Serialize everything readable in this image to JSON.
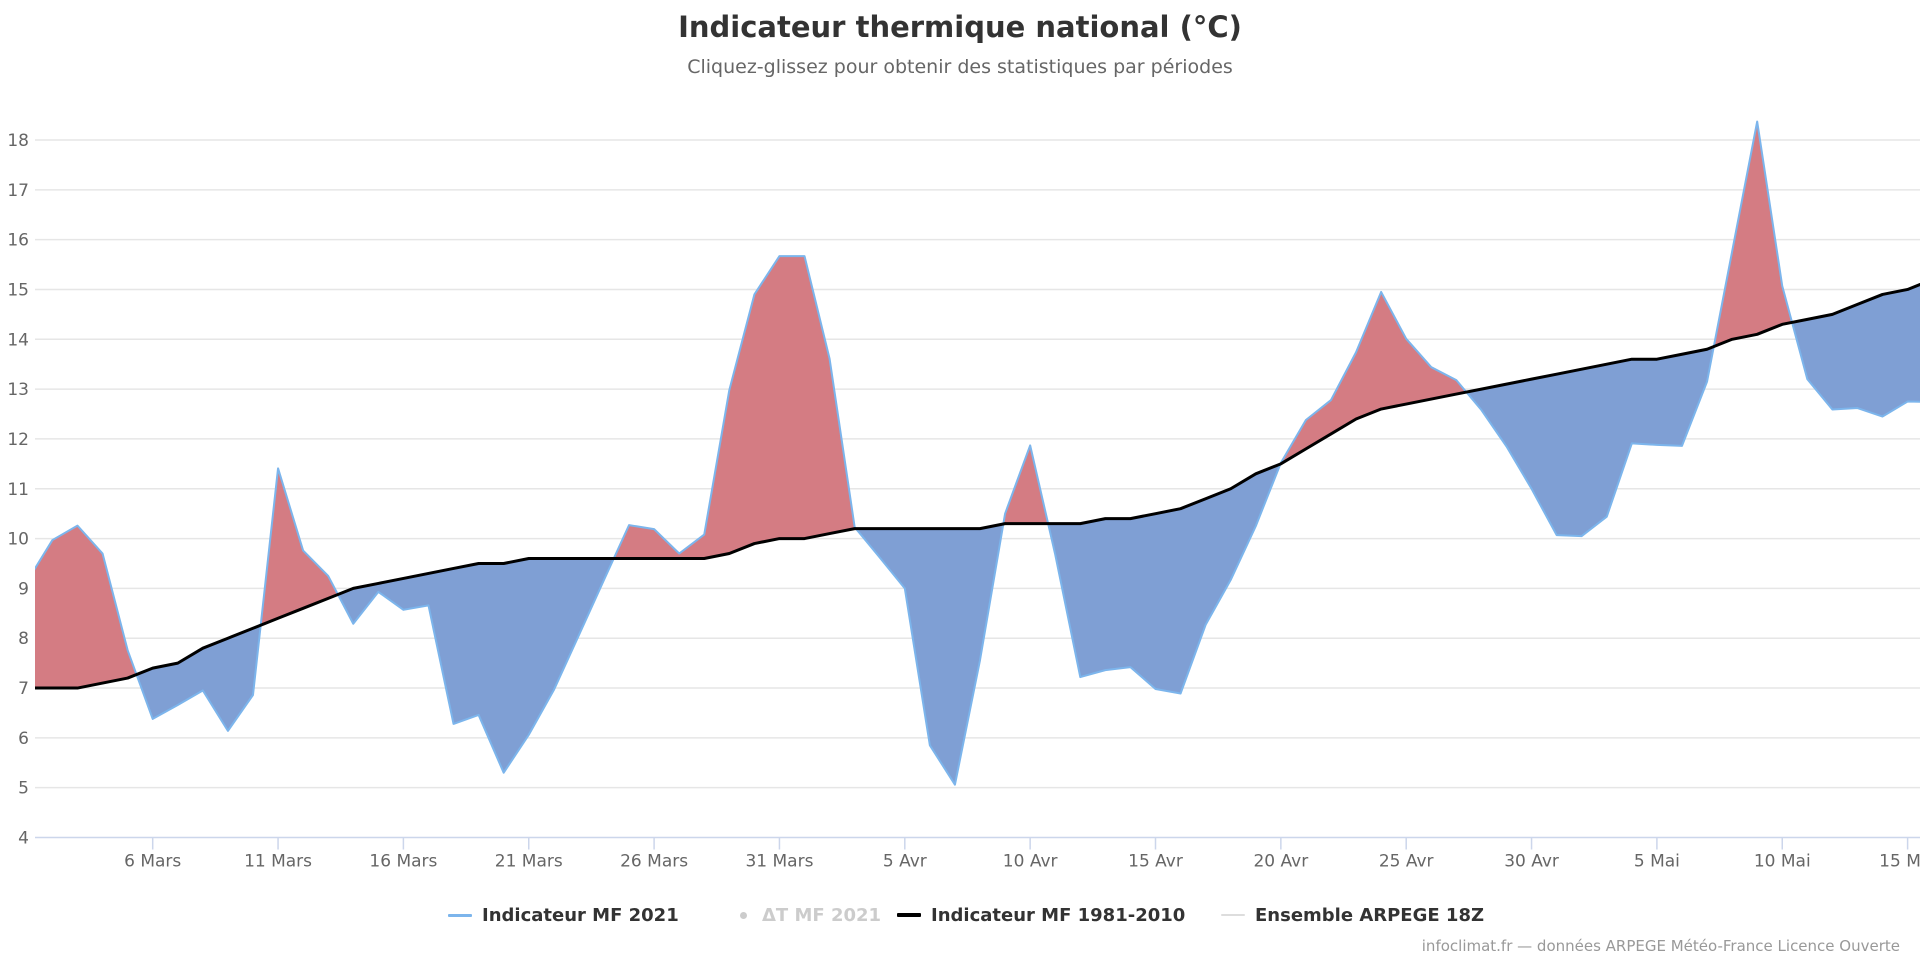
{
  "header": {
    "title": "Indicateur thermique national (°C)",
    "subtitle": "Cliquez-glissez pour obtenir des statistiques par périodes"
  },
  "legend": [
    {
      "name": "indicateur-mf-2021",
      "label": "Indicateur MF 2021",
      "symbol": "line",
      "color": "#7cb5ec",
      "visible": true
    },
    {
      "name": "delta-t-mf-2021",
      "label": "ΔT MF 2021",
      "symbol": "dot",
      "color": "#cccccc",
      "visible": false
    },
    {
      "name": "indicateur-mf-1981-2010",
      "label": "Indicateur MF 1981-2010",
      "symbol": "line",
      "color": "#000000",
      "visible": true
    },
    {
      "name": "ensemble-arpege-18z",
      "label": "Ensemble ARPEGE 18Z",
      "symbol": "line",
      "color": "#dddddd",
      "visible": true
    }
  ],
  "credit": "infoclimat.fr — données ARPEGE Météo-France Licence Ouverte",
  "colors": {
    "above_normal_fill": "#d47c83",
    "below_normal_fill": "#7f9fd4",
    "series_line": "#7cb5ec",
    "normal_line": "#000000",
    "gridline": "#e6e6e6",
    "axis_line": "#ccd6eb"
  },
  "chart_data": {
    "type": "area",
    "title": "Indicateur thermique national (°C)",
    "subtitle": "Cliquez-glissez pour obtenir des statistiques par périodes",
    "xlabel": "",
    "ylabel": "",
    "ylim": [
      4,
      18
    ],
    "yticks": [
      4,
      5,
      6,
      7,
      8,
      9,
      10,
      11,
      12,
      13,
      14,
      15,
      16,
      17,
      18
    ],
    "x_start": "1 Mars",
    "x_range_days": [
      0.3,
      76.5
    ],
    "x_step": "1 day",
    "xtick_days": [
      5,
      10,
      15,
      20,
      25,
      30,
      35,
      40,
      45,
      50,
      55,
      60,
      65,
      70,
      75
    ],
    "xtick_labels": [
      "6 Mars",
      "11 Mars",
      "16 Mars",
      "21 Mars",
      "26 Mars",
      "31 Mars",
      "5 Avr",
      "10 Avr",
      "15 Avr",
      "20 Avr",
      "25 Avr",
      "30 Avr",
      "5 Mai",
      "10 Mai",
      "15 Mai"
    ],
    "grid": true,
    "legend_position": "bottom-center",
    "series": [
      {
        "name": "Indicateur MF 2021",
        "values": [
          9.15,
          9.97,
          10.26,
          9.7,
          7.76,
          6.38,
          6.66,
          6.95,
          6.14,
          6.86,
          11.41,
          9.76,
          9.25,
          8.29,
          8.93,
          8.57,
          8.66,
          6.28,
          6.46,
          5.3,
          6.06,
          6.96,
          8.06,
          9.17,
          10.27,
          10.19,
          9.7,
          10.08,
          12.98,
          14.9,
          15.67,
          15.67,
          13.61,
          10.23,
          9.62,
          9.0,
          5.85,
          5.06,
          7.56,
          10.5,
          11.87,
          9.68,
          7.22,
          7.36,
          7.42,
          6.98,
          6.89,
          8.27,
          9.17,
          10.25,
          11.52,
          12.38,
          12.78,
          13.74,
          14.95,
          14.01,
          13.44,
          13.18,
          12.58,
          11.85,
          11.0,
          10.07,
          10.05,
          10.44,
          11.91,
          11.88,
          11.86,
          13.15,
          15.76,
          18.37,
          15.07,
          13.2,
          12.59,
          12.62,
          12.45,
          12.75,
          12.74
        ]
      },
      {
        "name": "Indicateur MF 1981-2010",
        "values": [
          7.0,
          7.0,
          7.0,
          7.1,
          7.2,
          7.4,
          7.5,
          7.8,
          8.0,
          8.2,
          8.4,
          8.6,
          8.8,
          9.0,
          9.1,
          9.2,
          9.3,
          9.4,
          9.5,
          9.5,
          9.6,
          9.6,
          9.6,
          9.6,
          9.6,
          9.6,
          9.6,
          9.6,
          9.7,
          9.9,
          10.0,
          10.0,
          10.1,
          10.2,
          10.2,
          10.2,
          10.2,
          10.2,
          10.2,
          10.3,
          10.3,
          10.3,
          10.3,
          10.4,
          10.4,
          10.5,
          10.6,
          10.8,
          11.0,
          11.3,
          11.5,
          11.8,
          12.1,
          12.4,
          12.6,
          12.7,
          12.8,
          12.9,
          13.0,
          13.1,
          13.2,
          13.3,
          13.4,
          13.5,
          13.6,
          13.6,
          13.7,
          13.8,
          14.0,
          14.1,
          14.3,
          14.4,
          14.5,
          14.7,
          14.9,
          15.0,
          15.2
        ]
      }
    ]
  }
}
